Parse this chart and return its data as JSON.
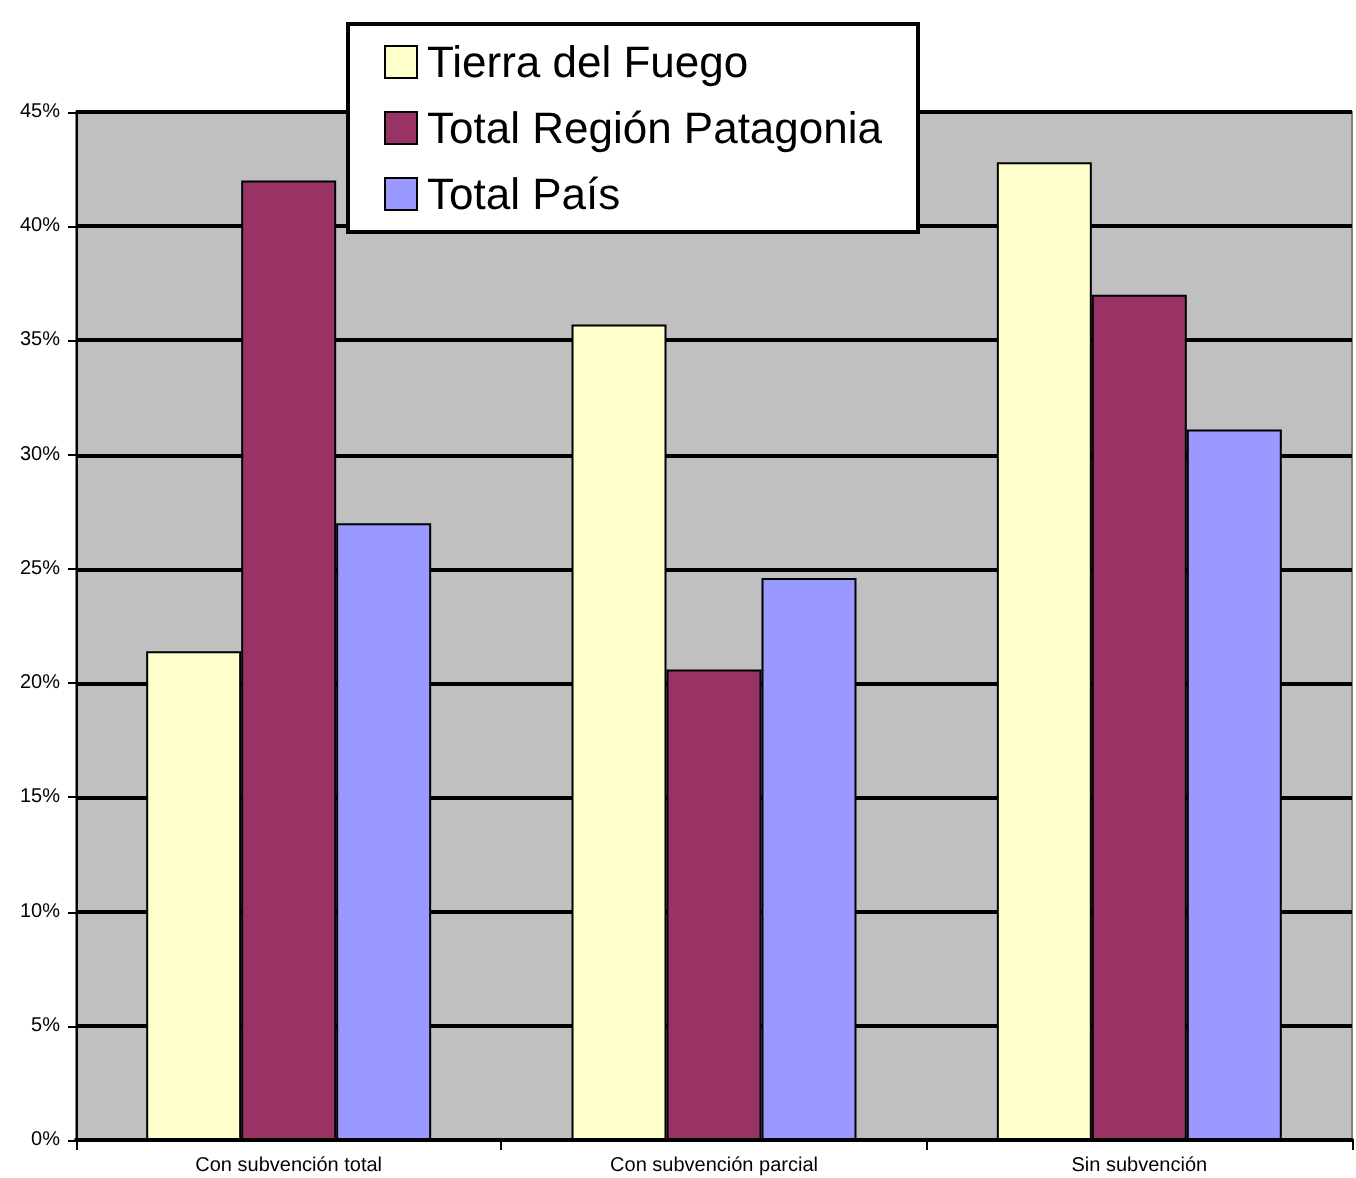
{
  "chart_data": {
    "type": "bar",
    "categories": [
      "Con subvención total",
      "Con subvención parcial",
      "Sin subvención"
    ],
    "series": [
      {
        "name": "Tierra del Fuego",
        "color": "#ffffcc",
        "values": [
          21.4,
          35.7,
          42.8
        ]
      },
      {
        "name": "Total Región Patagonia",
        "color": "#993366",
        "values": [
          42.0,
          20.6,
          37.0
        ]
      },
      {
        "name": "Total País",
        "color": "#9999ff",
        "values": [
          27.0,
          24.6,
          31.1
        ]
      }
    ],
    "ylim": [
      0,
      45
    ],
    "yticks": [
      {
        "value": 0,
        "label": "0%"
      },
      {
        "value": 5,
        "label": "5%"
      },
      {
        "value": 10,
        "label": "10%"
      },
      {
        "value": 15,
        "label": "15%"
      },
      {
        "value": 20,
        "label": "20%"
      },
      {
        "value": 25,
        "label": "25%"
      },
      {
        "value": 30,
        "label": "30%"
      },
      {
        "value": 35,
        "label": "35%"
      },
      {
        "value": 40,
        "label": "40%"
      },
      {
        "value": 45,
        "label": "45%"
      }
    ],
    "grid": "y",
    "legend": "top"
  }
}
